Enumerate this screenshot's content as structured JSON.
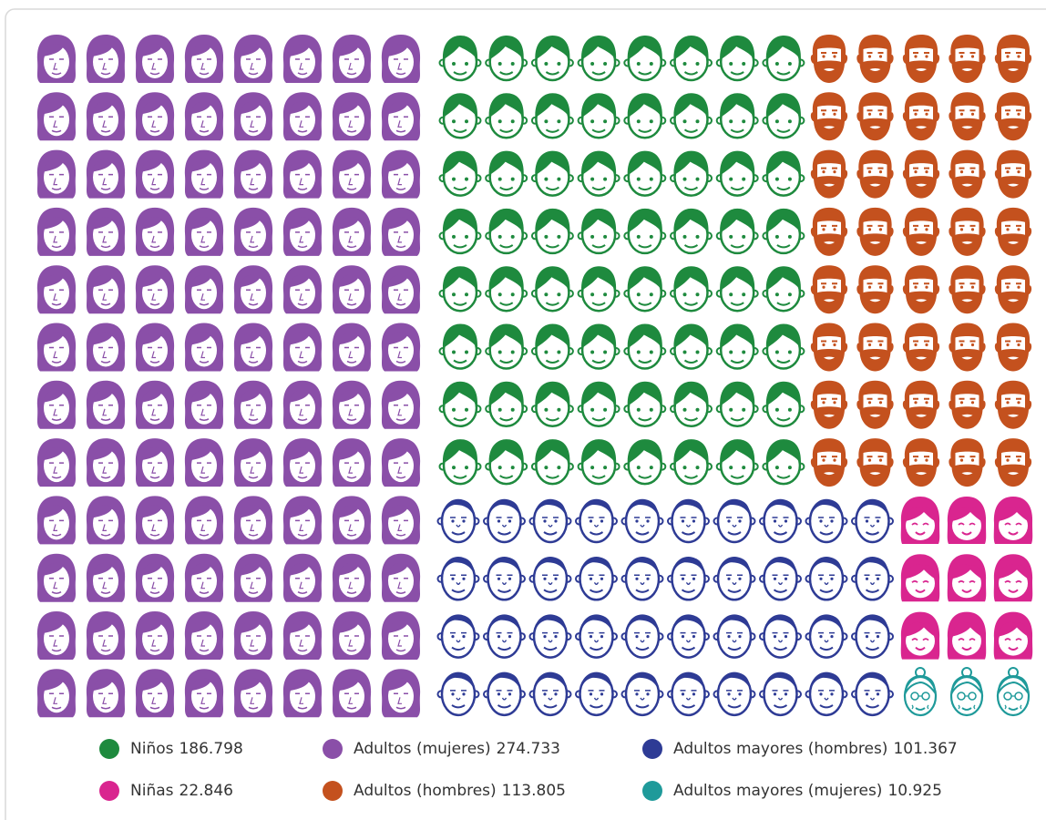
{
  "chart_data": {
    "type": "pictogram",
    "series": [
      {
        "name": "Niños",
        "color": "#1e8a3e",
        "values": [
          186798
        ],
        "value_labels": [
          "186.798"
        ],
        "icons": 64
      },
      {
        "name": "Niñas",
        "color": "#d9258f",
        "values": [
          22846
        ],
        "value_labels": [
          "22.846"
        ],
        "icons": 9
      },
      {
        "name": "Adultos (mujeres)",
        "color": "#8a4fa8",
        "values": [
          274733
        ],
        "value_labels": [
          "274.733"
        ],
        "icons": 96
      },
      {
        "name": "Adultos (hombres)",
        "color": "#c4511e",
        "values": [
          113805
        ],
        "value_labels": [
          "113.805"
        ],
        "icons": 40
      },
      {
        "name": "Adultos mayores (hombres)",
        "color": "#2e3b95",
        "values": [
          101367
        ],
        "value_labels": [
          "101.367"
        ],
        "icons": 40
      },
      {
        "name": "Adultos mayores (mujeres)",
        "color": "#1f9a9a",
        "values": [
          10925
        ],
        "value_labels": [
          "10.925"
        ],
        "icons": 3
      }
    ]
  }
}
